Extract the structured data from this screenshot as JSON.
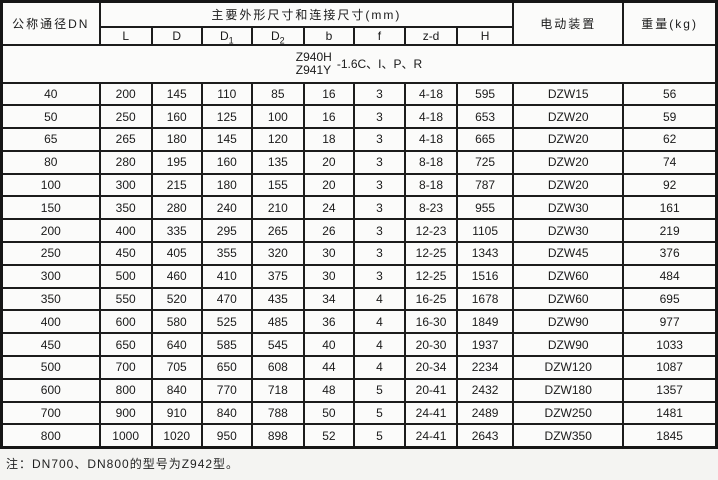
{
  "header": {
    "nominal_diameter": "公称通径DN",
    "dimensions_group": "主要外形尺寸和连接尺寸(mm)",
    "electric_actuator": "电动装置",
    "weight": "重量(kg)",
    "sub_columns": [
      {
        "base": "L",
        "sub": ""
      },
      {
        "base": "D",
        "sub": ""
      },
      {
        "base": "D",
        "sub": "1"
      },
      {
        "base": "D",
        "sub": "2"
      },
      {
        "base": "b",
        "sub": ""
      },
      {
        "base": "f",
        "sub": ""
      },
      {
        "base": "z-d",
        "sub": ""
      },
      {
        "base": "H",
        "sub": ""
      }
    ]
  },
  "model": {
    "top": "Z940H",
    "bottom": "Z941Y",
    "suffix": "-1.6C、I、P、R"
  },
  "table": {
    "columns": [
      "公称通径DN",
      "L",
      "D",
      "D1",
      "D2",
      "b",
      "f",
      "z-d",
      "H",
      "电动装置",
      "重量(kg)"
    ],
    "rows": [
      [
        "40",
        "200",
        "145",
        "110",
        "85",
        "16",
        "3",
        "4-18",
        "595",
        "DZW15",
        "56"
      ],
      [
        "50",
        "250",
        "160",
        "125",
        "100",
        "16",
        "3",
        "4-18",
        "653",
        "DZW20",
        "59"
      ],
      [
        "65",
        "265",
        "180",
        "145",
        "120",
        "18",
        "3",
        "4-18",
        "665",
        "DZW20",
        "62"
      ],
      [
        "80",
        "280",
        "195",
        "160",
        "135",
        "20",
        "3",
        "8-18",
        "725",
        "DZW20",
        "74"
      ],
      [
        "100",
        "300",
        "215",
        "180",
        "155",
        "20",
        "3",
        "8-18",
        "787",
        "DZW20",
        "92"
      ],
      [
        "150",
        "350",
        "280",
        "240",
        "210",
        "24",
        "3",
        "8-23",
        "955",
        "DZW30",
        "161"
      ],
      [
        "200",
        "400",
        "335",
        "295",
        "265",
        "26",
        "3",
        "12-23",
        "1105",
        "DZW30",
        "219"
      ],
      [
        "250",
        "450",
        "405",
        "355",
        "320",
        "30",
        "3",
        "12-25",
        "1343",
        "DZW45",
        "376"
      ],
      [
        "300",
        "500",
        "460",
        "410",
        "375",
        "30",
        "3",
        "12-25",
        "1516",
        "DZW60",
        "484"
      ],
      [
        "350",
        "550",
        "520",
        "470",
        "435",
        "34",
        "4",
        "16-25",
        "1678",
        "DZW60",
        "695"
      ],
      [
        "400",
        "600",
        "580",
        "525",
        "485",
        "36",
        "4",
        "16-30",
        "1849",
        "DZW90",
        "977"
      ],
      [
        "450",
        "650",
        "640",
        "585",
        "545",
        "40",
        "4",
        "20-30",
        "1937",
        "DZW90",
        "1033"
      ],
      [
        "500",
        "700",
        "705",
        "650",
        "608",
        "44",
        "4",
        "20-34",
        "2234",
        "DZW120",
        "1087"
      ],
      [
        "600",
        "800",
        "840",
        "770",
        "718",
        "48",
        "5",
        "20-41",
        "2432",
        "DZW180",
        "1357"
      ],
      [
        "700",
        "900",
        "910",
        "840",
        "788",
        "50",
        "5",
        "24-41",
        "2489",
        "DZW250",
        "1481"
      ],
      [
        "800",
        "1000",
        "1020",
        "950",
        "898",
        "52",
        "5",
        "24-41",
        "2643",
        "DZW350",
        "1845"
      ]
    ]
  },
  "note": "注：DN700、DN800的型号为Z942型。"
}
